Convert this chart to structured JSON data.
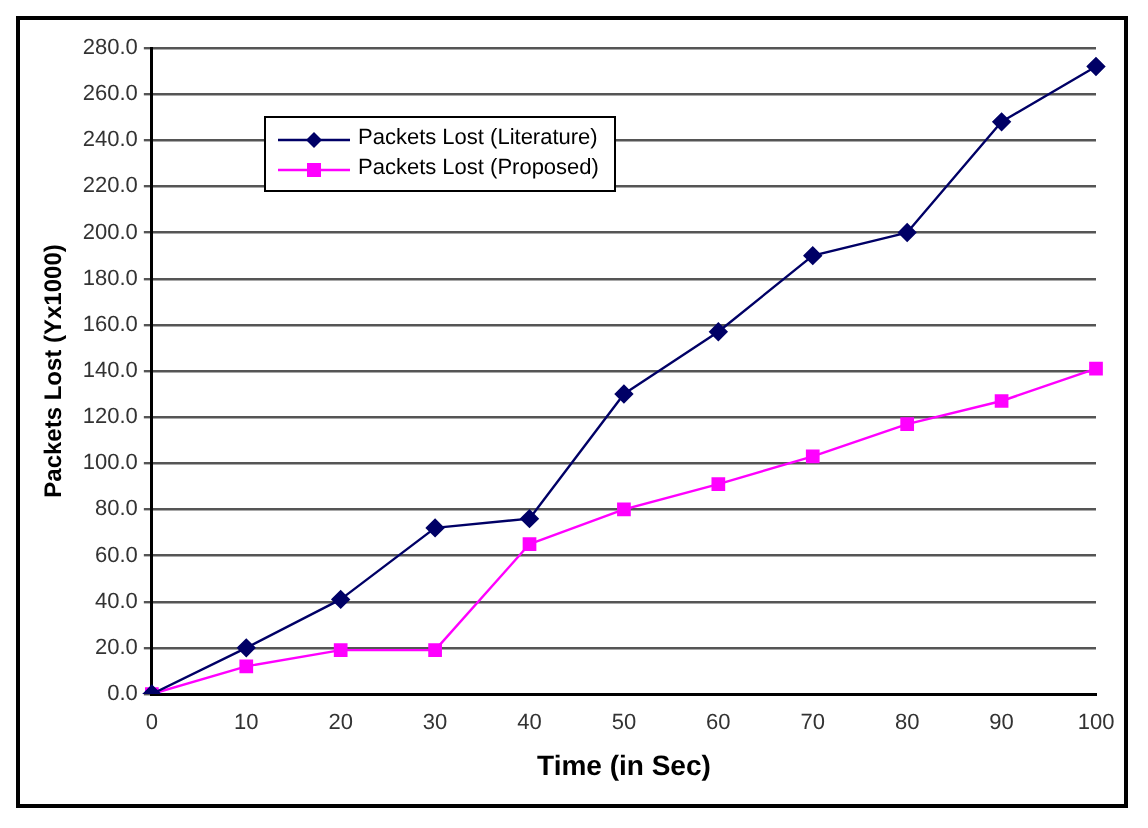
{
  "chart_data": {
    "type": "line",
    "xlabel": "Time (in Sec)",
    "ylabel": "Packets Lost (Yx1000)",
    "categories": [
      "0",
      "10",
      "20",
      "30",
      "40",
      "50",
      "60",
      "70",
      "80",
      "90",
      "100"
    ],
    "series": [
      {
        "name": "Packets Lost (Literature)",
        "color": "#000066",
        "marker": "diamond",
        "values": [
          0,
          20,
          41,
          72,
          76,
          130,
          157,
          190,
          200,
          248,
          272
        ]
      },
      {
        "name": "Packets Lost (Proposed)",
        "color": "#ff00ff",
        "marker": "square",
        "values": [
          0,
          12,
          19,
          19,
          65,
          80,
          91,
          103,
          117,
          127,
          141
        ]
      }
    ],
    "ylim": [
      0,
      280
    ],
    "yticks": [
      {
        "value": 0,
        "label": "0.0"
      },
      {
        "value": 20,
        "label": "20.0"
      },
      {
        "value": 40,
        "label": "40.0"
      },
      {
        "value": 60,
        "label": "60.0"
      },
      {
        "value": 80,
        "label": "80.0"
      },
      {
        "value": 100,
        "label": "100.0"
      },
      {
        "value": 120,
        "label": "120.0"
      },
      {
        "value": 140,
        "label": "140.0"
      },
      {
        "value": 160,
        "label": "160.0"
      },
      {
        "value": 180,
        "label": "180.0"
      },
      {
        "value": 200,
        "label": "200.0"
      },
      {
        "value": 220,
        "label": "220.0"
      },
      {
        "value": 240,
        "label": "240.0"
      },
      {
        "value": 260,
        "label": "260.0"
      },
      {
        "value": 280,
        "label": "280.0"
      }
    ],
    "grid": "y",
    "legend": "top left",
    "line_style": "solid"
  }
}
